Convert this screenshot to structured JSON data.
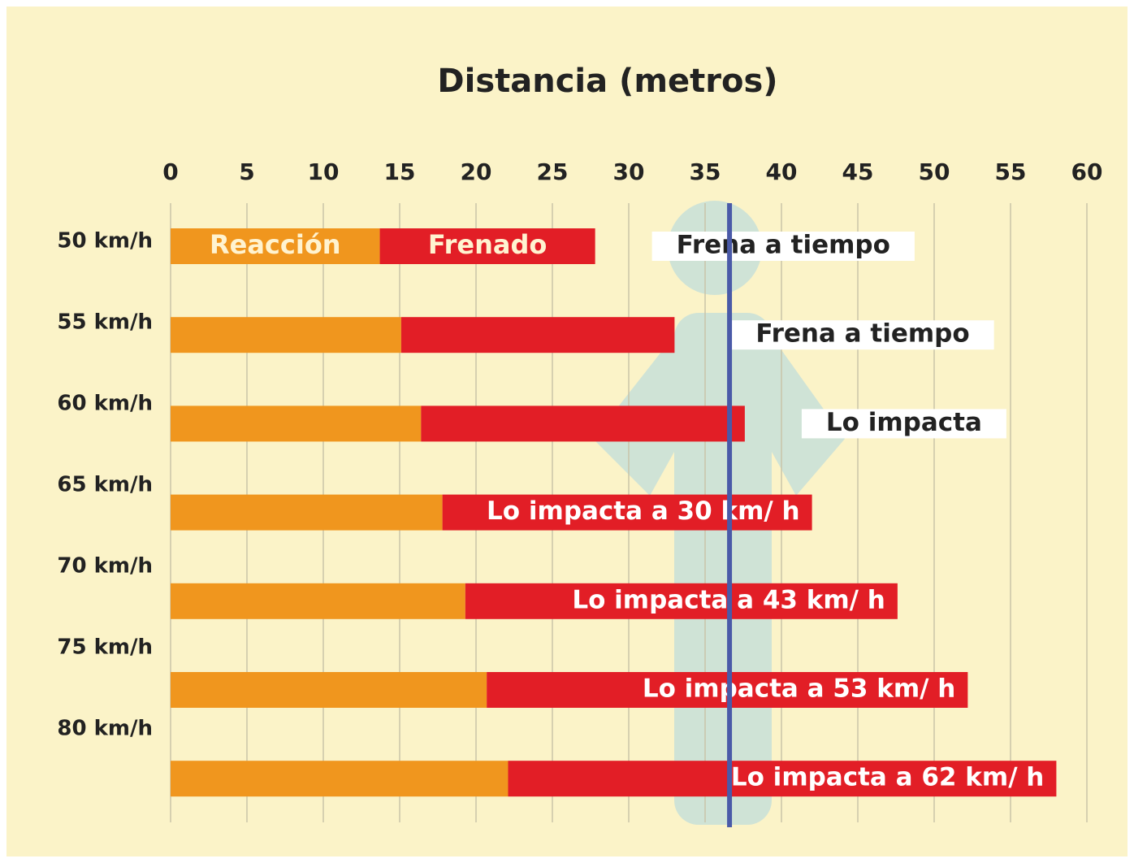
{
  "chart_data": {
    "type": "stacked-horizontal-bar",
    "title": "Distancia (metros)",
    "categories": [
      "50 km/h",
      "55 km/h",
      "60 km/h",
      "65 km/h",
      "70 km/h",
      "75 km/h",
      "80 km/h"
    ],
    "series": [
      {
        "name": "Reacción",
        "color": "#f0961e",
        "values": [
          13.7,
          15.1,
          16.4,
          17.8,
          19.3,
          20.7,
          22.1
        ]
      },
      {
        "name": "Frenado",
        "color": "#e21e26",
        "values": [
          14.1,
          17.9,
          21.2,
          24.2,
          28.3,
          31.5,
          35.9
        ]
      }
    ],
    "bar_labels": [
      "Frena a tiempo",
      "Frena a tiempo",
      "Lo impacta",
      "Lo impacta a 30 km/ h",
      "Lo impacta a 43 km/ h",
      "Lo impacta a 53 km/ h",
      "Lo impacta a 62 km/ h"
    ],
    "pedestrian_distance": 36.6,
    "pedestrian_color": "#4a5aa8",
    "xlim": [
      0,
      60
    ],
    "xticks": [
      0,
      5,
      10,
      15,
      20,
      25,
      30,
      35,
      40,
      45,
      50,
      55,
      60
    ],
    "grid": true
  }
}
